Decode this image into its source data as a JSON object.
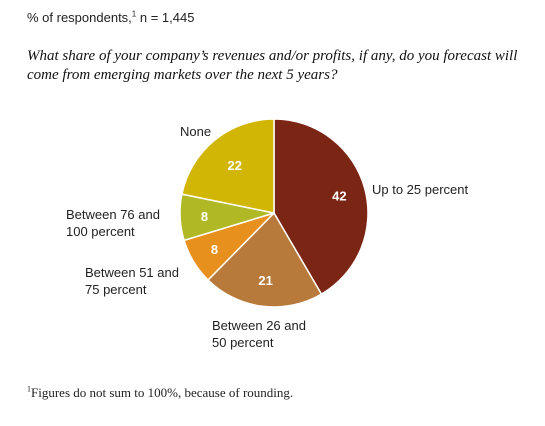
{
  "subtitle": {
    "text": "% of respondents,",
    "sup": "1",
    "n": " n = 1,445"
  },
  "question": "What share of your company’s revenues and/or profits, if any, do you forecast will come from emerging markets over the next 5 years?",
  "footnote": {
    "sup": "1",
    "text": "Figures do not sum to 100%, because of rounding."
  },
  "chart_data": {
    "type": "pie",
    "slices": [
      {
        "label": "Up to 25 percent",
        "value": 42,
        "color": "#7b2514"
      },
      {
        "label": "Between 26 and 50 percent",
        "value": 21,
        "color": "#b87a3a"
      },
      {
        "label": "Between 51 and 75 percent",
        "value": 8,
        "color": "#e8901e"
      },
      {
        "label": "Between 76 and 100 percent",
        "value": 8,
        "color": "#b0b826"
      },
      {
        "label": "None",
        "value": 22,
        "color": "#d2b606"
      }
    ],
    "category_labels": [
      [
        "Up to 25 percent"
      ],
      [
        "Between 26 and",
        "50 percent"
      ],
      [
        "Between 51 and",
        "75 percent"
      ],
      [
        "Between 76 and",
        "100 percent"
      ],
      [
        "None"
      ]
    ]
  }
}
